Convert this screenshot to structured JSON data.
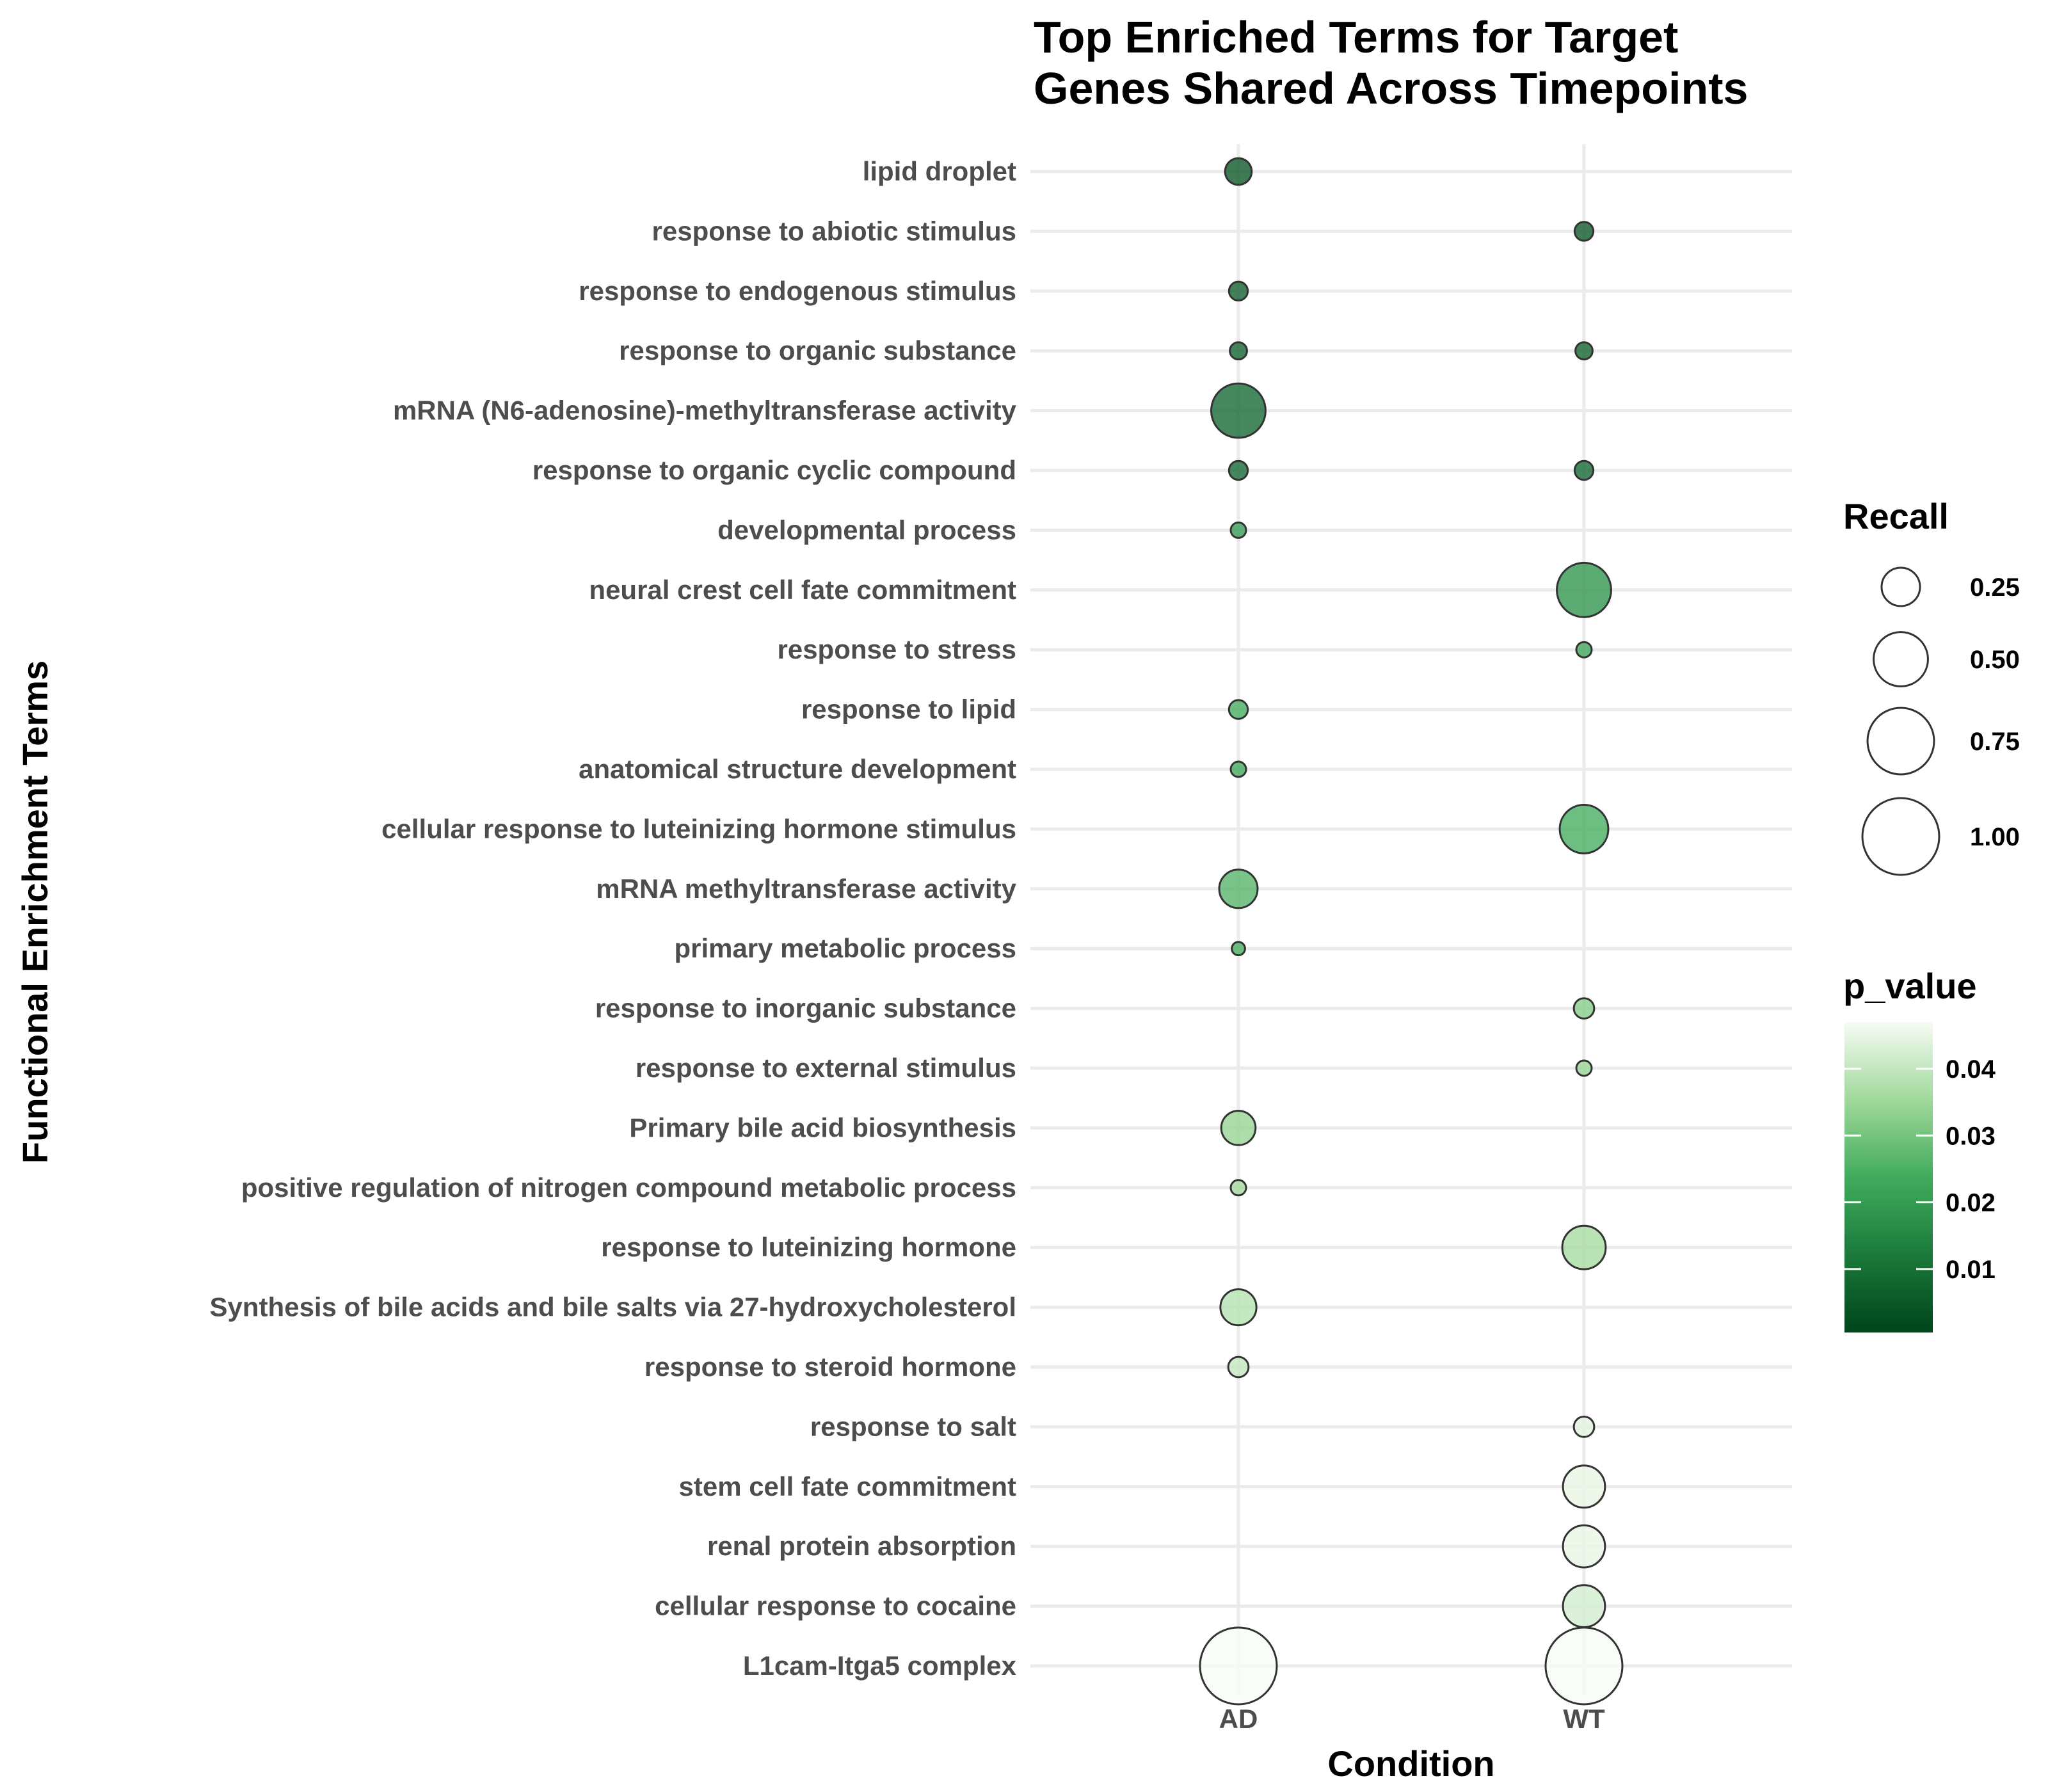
{
  "chart_data": {
    "type": "scatter",
    "title": "Top Enriched Terms for Target Genes Shared Across Timepoints",
    "title_lines": [
      "Top Enriched Terms for Target",
      "Genes Shared Across Timepoints"
    ],
    "xlabel": "Condition",
    "ylabel": "Functional Enrichment Terms",
    "x_categories": [
      "AD",
      "WT"
    ],
    "terms": [
      "lipid droplet",
      "response to abiotic stimulus",
      "response to endogenous stimulus",
      "response to organic substance",
      "mRNA (N6-adenosine)-methyltransferase activity",
      "response to organic cyclic compound",
      "developmental process",
      "neural crest cell fate commitment",
      "response to stress",
      "response to lipid",
      "anatomical structure development",
      "cellular response to luteinizing hormone stimulus",
      "mRNA methyltransferase activity",
      "primary metabolic process",
      "response to inorganic substance",
      "response to external stimulus",
      "Primary bile acid biosynthesis",
      "positive regulation of nitrogen compound metabolic process",
      "response to luteinizing hormone",
      "Synthesis of bile acids and bile salts via 27-hydroxycholesterol",
      "response to steroid hormone",
      "response to salt",
      "stem cell fate commitment",
      "renal protein absorption",
      "cellular response to cocaine",
      "L1cam-Itga5 complex"
    ],
    "points": [
      {
        "term": "lipid droplet",
        "condition": "AD",
        "recall": 0.12,
        "p_value": 0.004
      },
      {
        "term": "response to abiotic stimulus",
        "condition": "WT",
        "recall": 0.06,
        "p_value": 0.005
      },
      {
        "term": "response to endogenous stimulus",
        "condition": "AD",
        "recall": 0.06,
        "p_value": 0.006
      },
      {
        "term": "response to organic substance",
        "condition": "AD",
        "recall": 0.05,
        "p_value": 0.007
      },
      {
        "term": "response to organic substance",
        "condition": "WT",
        "recall": 0.05,
        "p_value": 0.007
      },
      {
        "term": "mRNA (N6-adenosine)-methyltransferase activity",
        "condition": "AD",
        "recall": 0.5,
        "p_value": 0.008
      },
      {
        "term": "response to organic cyclic compound",
        "condition": "AD",
        "recall": 0.06,
        "p_value": 0.008
      },
      {
        "term": "response to organic cyclic compound",
        "condition": "WT",
        "recall": 0.06,
        "p_value": 0.008
      },
      {
        "term": "developmental process",
        "condition": "AD",
        "recall": 0.04,
        "p_value": 0.02
      },
      {
        "term": "neural crest cell fate commitment",
        "condition": "WT",
        "recall": 0.5,
        "p_value": 0.018
      },
      {
        "term": "response to stress",
        "condition": "WT",
        "recall": 0.04,
        "p_value": 0.022
      },
      {
        "term": "response to lipid",
        "condition": "AD",
        "recall": 0.06,
        "p_value": 0.024
      },
      {
        "term": "anatomical structure development",
        "condition": "AD",
        "recall": 0.04,
        "p_value": 0.023
      },
      {
        "term": "cellular response to luteinizing hormone stimulus",
        "condition": "WT",
        "recall": 0.4,
        "p_value": 0.024
      },
      {
        "term": "mRNA methyltransferase activity",
        "condition": "AD",
        "recall": 0.25,
        "p_value": 0.026
      },
      {
        "term": "primary metabolic process",
        "condition": "AD",
        "recall": 0.03,
        "p_value": 0.024
      },
      {
        "term": "response to inorganic substance",
        "condition": "WT",
        "recall": 0.07,
        "p_value": 0.032
      },
      {
        "term": "response to external stimulus",
        "condition": "WT",
        "recall": 0.04,
        "p_value": 0.034
      },
      {
        "term": "Primary bile acid biosynthesis",
        "condition": "AD",
        "recall": 0.2,
        "p_value": 0.034
      },
      {
        "term": "positive regulation of nitrogen compound metabolic process",
        "condition": "AD",
        "recall": 0.04,
        "p_value": 0.035
      },
      {
        "term": "response to luteinizing hormone",
        "condition": "WT",
        "recall": 0.32,
        "p_value": 0.036
      },
      {
        "term": "Synthesis of bile acids and bile salts via 27-hydroxycholesterol",
        "condition": "AD",
        "recall": 0.22,
        "p_value": 0.038
      },
      {
        "term": "response to steroid hormone",
        "condition": "AD",
        "recall": 0.07,
        "p_value": 0.04
      },
      {
        "term": "response to salt",
        "condition": "WT",
        "recall": 0.07,
        "p_value": 0.044
      },
      {
        "term": "stem cell fate commitment",
        "condition": "WT",
        "recall": 0.3,
        "p_value": 0.045
      },
      {
        "term": "renal protein absorption",
        "condition": "WT",
        "recall": 0.3,
        "p_value": 0.045
      },
      {
        "term": "cellular response to cocaine",
        "condition": "WT",
        "recall": 0.3,
        "p_value": 0.042
      },
      {
        "term": "L1cam-Itga5 complex",
        "condition": "AD",
        "recall": 1.0,
        "p_value": 0.047
      },
      {
        "term": "L1cam-Itga5 complex",
        "condition": "WT",
        "recall": 1.0,
        "p_value": 0.047
      }
    ],
    "size_legend": {
      "title": "Recall",
      "breaks": [
        0.25,
        0.5,
        0.75,
        1.0
      ],
      "labels": [
        "0.25",
        "0.50",
        "0.75",
        "1.00"
      ]
    },
    "color_legend": {
      "title": "p_value",
      "range": [
        0.0005,
        0.047
      ],
      "breaks": [
        0.04,
        0.03,
        0.02,
        0.01
      ],
      "labels": [
        "0.04",
        "0.03",
        "0.02",
        "0.01"
      ],
      "low_color": "#00441b",
      "mid_color": "#41ab5d",
      "high_color": "#f7fcf5"
    },
    "grid": true
  }
}
